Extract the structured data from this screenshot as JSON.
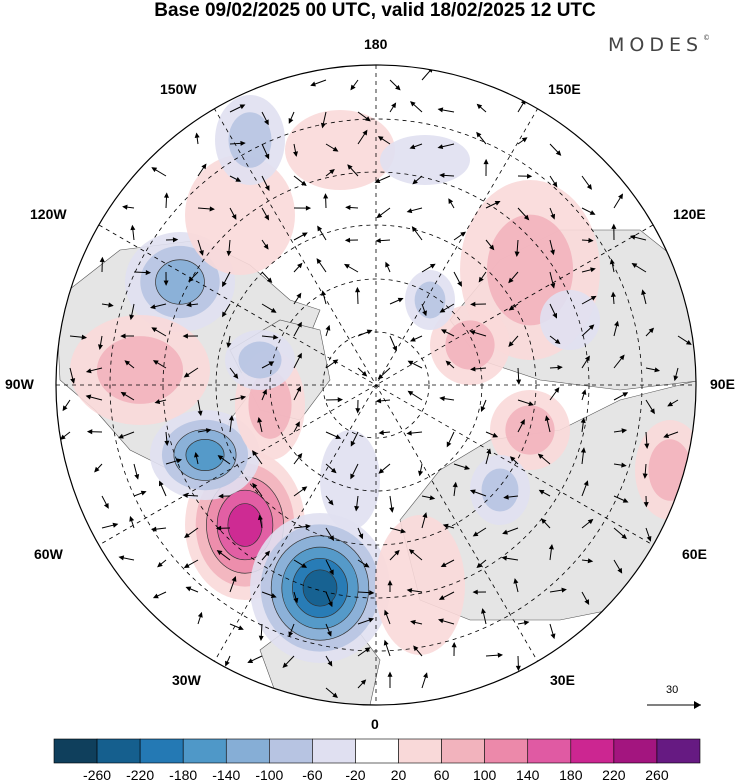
{
  "title": "Base 09/02/2025 00 UTC, valid 18/02/2025 12 UTC",
  "brand": "MODES",
  "brand_mark": "©",
  "lon_labels": {
    "top": "180",
    "bottom": "0",
    "left": "90W",
    "right": "90E",
    "upper_left_1": "150W",
    "upper_left_2": "120W",
    "upper_right_1": "150E",
    "upper_right_2": "120E",
    "lower_left_1": "60W",
    "lower_left_2": "30W",
    "lower_right_1": "60E",
    "lower_right_2": "30E"
  },
  "reference_vector": {
    "label": "30"
  },
  "colorbar": {
    "labels": [
      "-260",
      "-220",
      "-180",
      "-140",
      "-100",
      "-60",
      "-20",
      "20",
      "60",
      "100",
      "140",
      "180",
      "220",
      "260"
    ],
    "colors": [
      "#0f3f5c",
      "#155f8e",
      "#2479b4",
      "#4f98c8",
      "#86aed6",
      "#b7c4e2",
      "#e0e0f1",
      "#ffffff",
      "#f9d9d9",
      "#f2b3bd",
      "#ec89aa",
      "#e05aa3",
      "#cc2691",
      "#a3157f",
      "#661a82"
    ]
  },
  "map": {
    "land_color": "#e5e5e5",
    "ocean_color": "#ffffff"
  }
}
